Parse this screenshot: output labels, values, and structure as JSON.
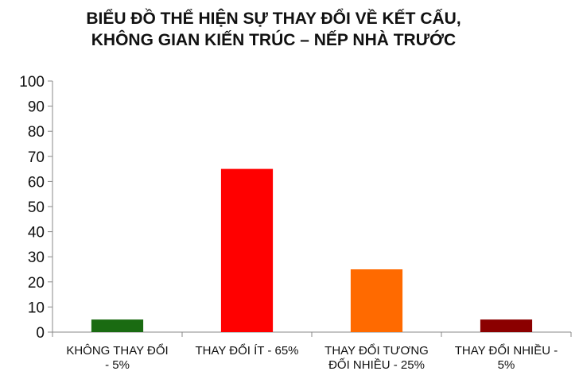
{
  "chart_data": {
    "type": "bar",
    "title_lines": [
      "BIỂU ĐỒ THỂ HIỆN SỰ THAY ĐỔI  VỀ KẾT CẤU,",
      "KHÔNG GIAN KIẾN TRÚC – NẾP NHÀ TRƯỚC"
    ],
    "categories": [
      [
        "KHÔNG  THAY ĐỔI",
        "- 5%"
      ],
      [
        "THAY ĐỔI ÍT - 65%"
      ],
      [
        "THAY ĐỔI TƯƠNG",
        "ĐỐI NHIỀU  - 25%"
      ],
      [
        "THAY ĐỔI NHIỀU  -",
        "5%"
      ]
    ],
    "values": [
      5,
      65,
      25,
      5
    ],
    "colors": [
      "#1a6b12",
      "#ff0000",
      "#ff6a00",
      "#8b0000"
    ],
    "ylim": [
      0,
      100
    ],
    "yticks": [
      0,
      10,
      20,
      30,
      40,
      50,
      60,
      70,
      80,
      90,
      100
    ],
    "grid": false
  }
}
